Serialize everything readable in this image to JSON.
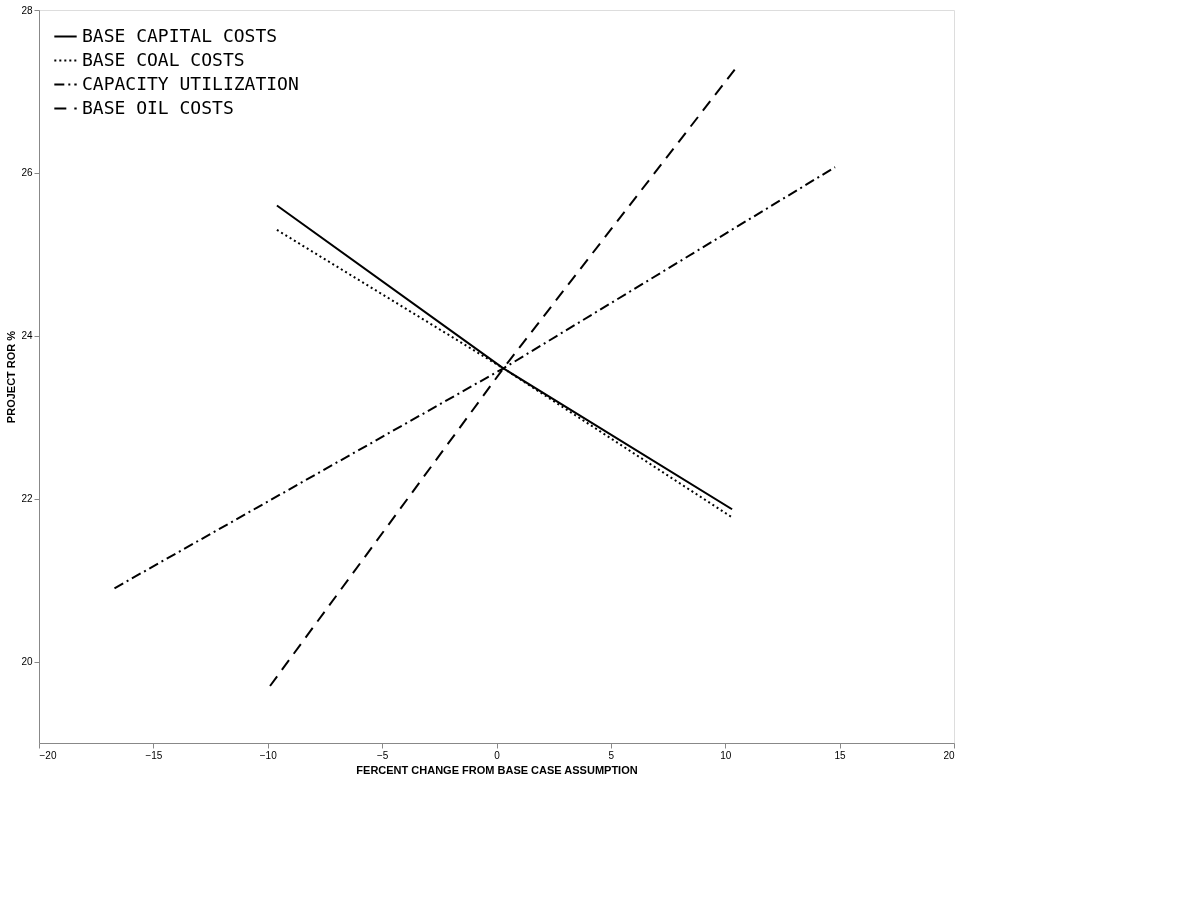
{
  "chart_data": {
    "type": "line",
    "xlabel": "FERCENT CHANGE FROM BASE CASE ASSUMPTION",
    "ylabel": "PROJECT ROR %",
    "xlim": [
      -20,
      20
    ],
    "xticks": [
      -20,
      -15,
      -10,
      -5,
      0,
      5,
      10,
      15,
      20
    ],
    "ylim": [
      19,
      28
    ],
    "yticks": [
      20,
      22,
      24,
      26,
      28
    ],
    "grid": false,
    "legend": "top left",
    "series": [
      {
        "name": "BASE CAPITAL COSTS",
        "color": "#000000",
        "line_style": "solid",
        "x": [
          -9.6,
          0.3,
          10.3
        ],
        "values": [
          25.6,
          23.6,
          21.87
        ]
      },
      {
        "name": "BASE COAL COSTS",
        "color": "#000000",
        "line_style": "dotted",
        "x": [
          -9.6,
          0.3,
          10.3
        ],
        "values": [
          25.3,
          23.6,
          21.77
        ]
      },
      {
        "name": "CAPACITY UTILIZATION",
        "color": "#000000",
        "line_style": "dashdot",
        "x": [
          -16.7,
          0.3,
          14.8
        ],
        "values": [
          20.9,
          23.6,
          26.07
        ]
      },
      {
        "name": "BASE OIL COSTS",
        "color": "#000000",
        "line_style": "dashed",
        "x": [
          -9.9,
          0.3,
          10.5
        ],
        "values": [
          19.7,
          23.6,
          27.3
        ]
      }
    ]
  }
}
